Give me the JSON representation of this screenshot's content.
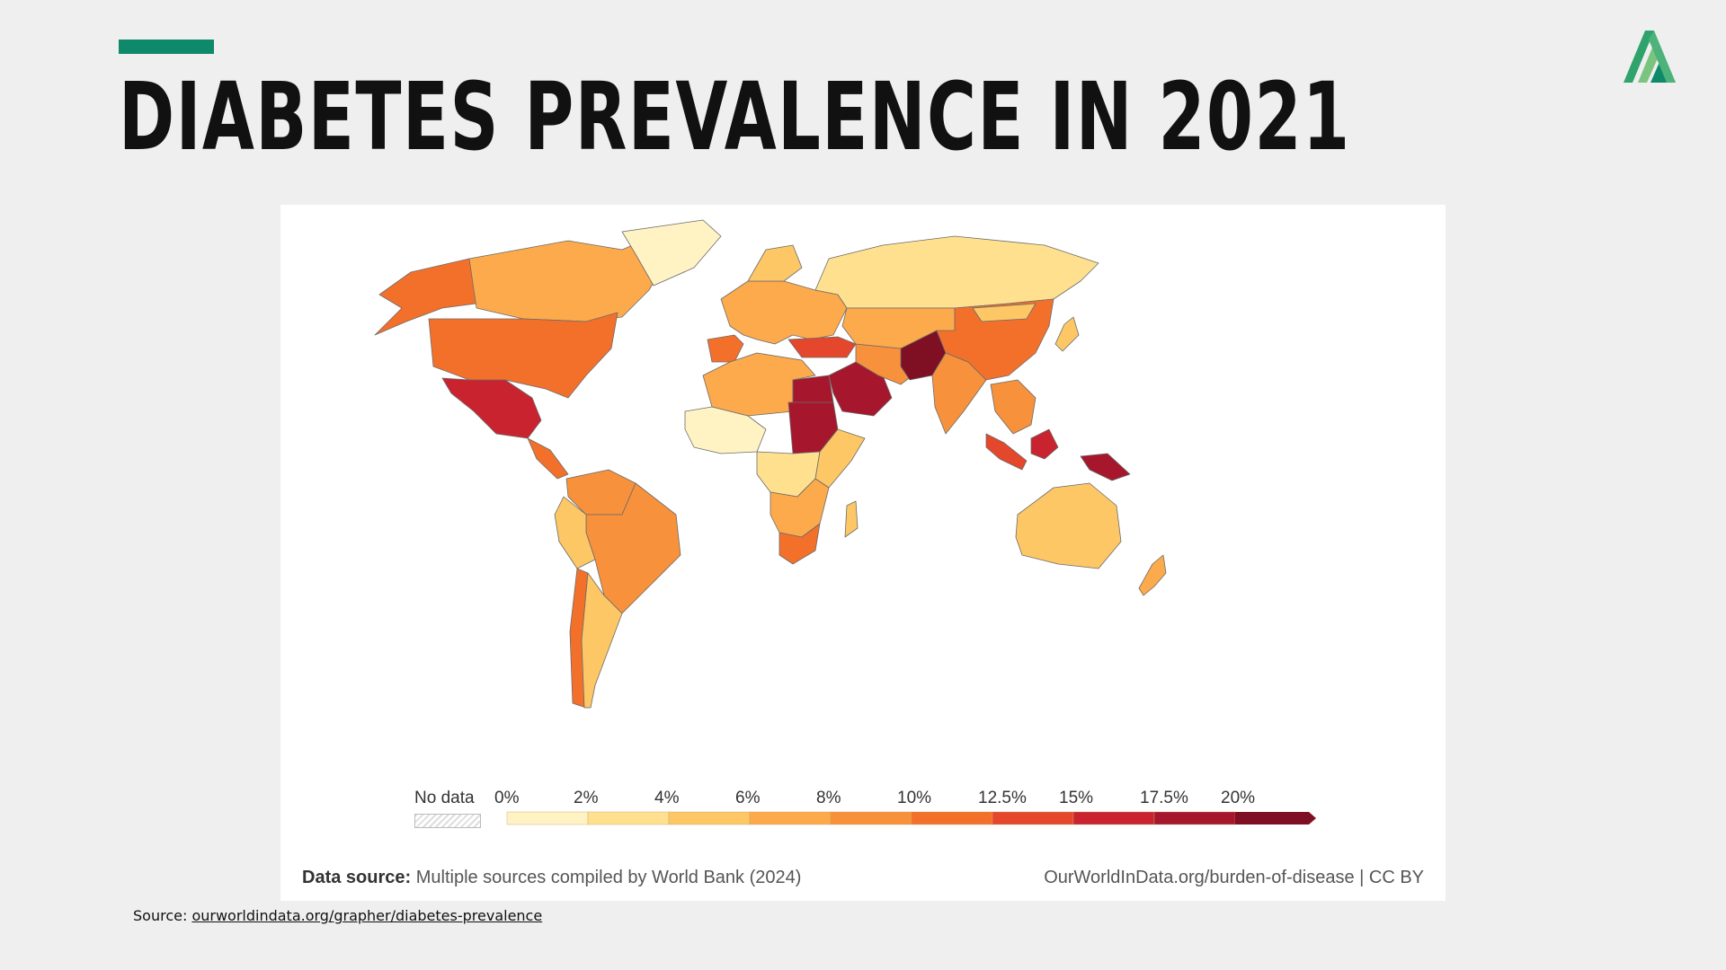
{
  "slide": {
    "title": "DIABETES PREVALENCE IN 2021",
    "accent_color": "#0e8a6a",
    "logo_icon": "stylized-a-leaf-logo"
  },
  "map": {
    "type": "choropleth",
    "metric": "Diabetes prevalence",
    "year": "2021",
    "legend": {
      "no_data_label": "No data",
      "ticks": [
        "0%",
        "2%",
        "4%",
        "6%",
        "8%",
        "10%",
        "12.5%",
        "15%",
        "17.5%",
        "20%"
      ],
      "bins": [
        {
          "range": "0-2%",
          "color": "#fff3c4"
        },
        {
          "range": "2-4%",
          "color": "#fee08f"
        },
        {
          "range": "4-6%",
          "color": "#fdc766"
        },
        {
          "range": "6-8%",
          "color": "#fcaa4b"
        },
        {
          "range": "8-10%",
          "color": "#f8913b"
        },
        {
          "range": "10-12.5%",
          "color": "#f3702b"
        },
        {
          "range": "12.5-15%",
          "color": "#e4472b"
        },
        {
          "range": "15-17.5%",
          "color": "#c92330"
        },
        {
          "range": "17.5-20%",
          "color": "#a6172d"
        },
        {
          "range": ">20%",
          "color": "#7f0f22"
        }
      ]
    },
    "regions": [
      {
        "name": "Alaska",
        "color": "#f3702b"
      },
      {
        "name": "Canada",
        "color": "#fcaa4b"
      },
      {
        "name": "Greenland",
        "color": "#fff3c4"
      },
      {
        "name": "United States",
        "color": "#f3702b"
      },
      {
        "name": "Mexico",
        "color": "#c92330"
      },
      {
        "name": "Central America",
        "color": "#f3702b"
      },
      {
        "name": "South America north",
        "color": "#f8913b"
      },
      {
        "name": "Brazil",
        "color": "#f8913b"
      },
      {
        "name": "Andean west",
        "color": "#fdc766"
      },
      {
        "name": "Chile",
        "color": "#f3702b"
      },
      {
        "name": "Argentina",
        "color": "#fdc766"
      },
      {
        "name": "Spain",
        "color": "#f3702b"
      },
      {
        "name": "Europe",
        "color": "#fcaa4b"
      },
      {
        "name": "Scandinavia",
        "color": "#fdc766"
      },
      {
        "name": "Russia",
        "color": "#fee08f"
      },
      {
        "name": "Turkey",
        "color": "#e4472b"
      },
      {
        "name": "North Africa",
        "color": "#fcaa4b"
      },
      {
        "name": "West Africa",
        "color": "#fff3c4"
      },
      {
        "name": "Egypt",
        "color": "#a6172d"
      },
      {
        "name": "Sudan",
        "color": "#a6172d"
      },
      {
        "name": "Saudi Arabia",
        "color": "#a6172d"
      },
      {
        "name": "Iran",
        "color": "#f8913b"
      },
      {
        "name": "Central Asia",
        "color": "#fcaa4b"
      },
      {
        "name": "Pakistan",
        "color": "#7f0f22"
      },
      {
        "name": "India",
        "color": "#f8913b"
      },
      {
        "name": "China",
        "color": "#f3702b"
      },
      {
        "name": "Mongolia",
        "color": "#fdc766"
      },
      {
        "name": "Japan",
        "color": "#fdc766"
      },
      {
        "name": "Southeast Asia",
        "color": "#f8913b"
      },
      {
        "name": "Central Africa",
        "color": "#fee08f"
      },
      {
        "name": "East Africa",
        "color": "#fdc766"
      },
      {
        "name": "Southern Africa",
        "color": "#fcaa4b"
      },
      {
        "name": "South Africa",
        "color": "#f3702b"
      },
      {
        "name": "Madagascar",
        "color": "#fdc766"
      },
      {
        "name": "Indonesia",
        "color": "#e4472b"
      },
      {
        "name": "Borneo",
        "color": "#c92330"
      },
      {
        "name": "Papua New Guinea",
        "color": "#a6172d"
      },
      {
        "name": "Australia",
        "color": "#fdc766"
      },
      {
        "name": "New Zealand",
        "color": "#fcaa4b"
      }
    ]
  },
  "footer": {
    "data_source_label": "Data source:",
    "data_source_text": " Multiple sources compiled by World Bank (2024)",
    "credit": "OurWorldInData.org/burden-of-disease | CC BY"
  },
  "source": {
    "prefix": "Source: ",
    "link_text": "ourworldindata.org/grapher/diabetes-prevalence"
  }
}
